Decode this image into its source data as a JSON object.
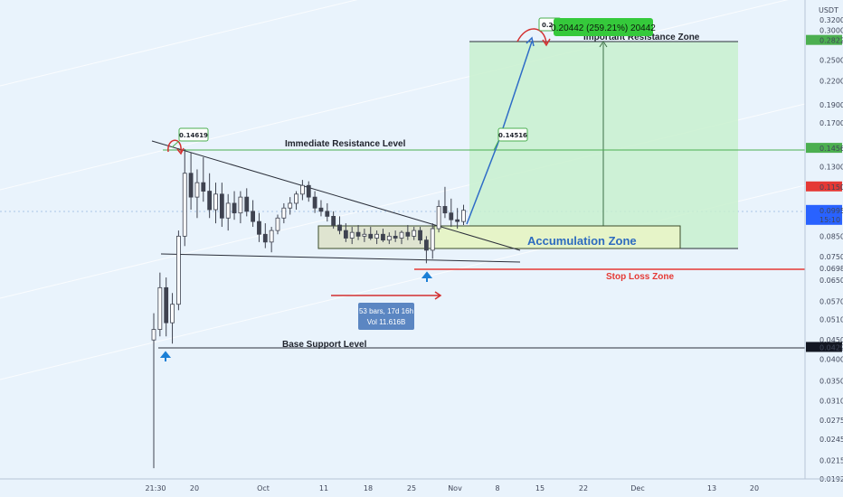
{
  "colors": {
    "background": "#e9f3fc",
    "up_candle": "#3f4350",
    "down_candle": "#3f4350",
    "resistance_line": "#4caf50",
    "stop_loss_line": "#e53935",
    "zone_fill": "#c8f0cf",
    "accumulation_fill": "#e6f4c8",
    "projection_line": "#2e6cc7",
    "arrow_blue": "#1b7fd6",
    "arrow_red": "#d32f2f",
    "measure_box": "#5b86c2",
    "price_tag_black": "#131722",
    "price_tag_green": "#4caf50",
    "price_tag_red": "#e53935",
    "price_tag_blue": "#2962ff"
  },
  "axis": {
    "currency": "USDT",
    "price_ticks": [
      "0.32000",
      "0.30000",
      "0.28223",
      "0.25000",
      "0.22000",
      "0.19000",
      "0.17000",
      "0.14567",
      "0.13000",
      "0.11500",
      "0.09956",
      "0.08500",
      "0.07500",
      "0.06980",
      "0.06500",
      "0.05700",
      "0.05100",
      "0.04500",
      "0.04299",
      "0.04000",
      "0.03500",
      "0.03100",
      "0.02750",
      "0.02450",
      "0.02150",
      "0.01920"
    ],
    "time_ticks": [
      "21:30",
      "20",
      "Oct",
      "11",
      "18",
      "25",
      "Nov",
      "8",
      "15",
      "22",
      "Dec",
      "13",
      "20"
    ],
    "last_price": "0.09956",
    "countdown": "15:10"
  },
  "annotations": {
    "immediate_resistance": "Immediate Resistance Level",
    "important_resistance": "Important Resistance Zone",
    "accumulation": "Accumulation Zone",
    "stop_loss": "Stop Loss Zone",
    "base_support": "Base Support Level",
    "callout_high": "0.14619",
    "callout_mid": "0.14516",
    "callout_target": "0.2850",
    "target_tooltip": "0.20442 (259.21%) 20442",
    "measure_line1": "53 bars, 17d 16h",
    "measure_line2": "Vol 11.616B"
  },
  "chart_data": {
    "type": "candlestick",
    "symbol_quote": "USDT",
    "y_axis": "log",
    "ylim": [
      0.0192,
      0.32
    ],
    "levels": {
      "important_resistance": 0.28223,
      "immediate_resistance": 0.14567,
      "stop_loss": 0.0698,
      "base_support": 0.04299,
      "last_price": 0.09956
    },
    "candles": [
      {
        "o": 0.045,
        "h": 0.053,
        "l": 0.0205,
        "c": 0.048
      },
      {
        "o": 0.048,
        "h": 0.068,
        "l": 0.046,
        "c": 0.062
      },
      {
        "o": 0.062,
        "h": 0.066,
        "l": 0.046,
        "c": 0.05
      },
      {
        "o": 0.05,
        "h": 0.06,
        "l": 0.044,
        "c": 0.056
      },
      {
        "o": 0.056,
        "h": 0.088,
        "l": 0.054,
        "c": 0.085
      },
      {
        "o": 0.085,
        "h": 0.145,
        "l": 0.08,
        "c": 0.125
      },
      {
        "o": 0.125,
        "h": 0.142,
        "l": 0.1,
        "c": 0.108
      },
      {
        "o": 0.108,
        "h": 0.128,
        "l": 0.095,
        "c": 0.118
      },
      {
        "o": 0.118,
        "h": 0.138,
        "l": 0.105,
        "c": 0.112
      },
      {
        "o": 0.112,
        "h": 0.125,
        "l": 0.095,
        "c": 0.1
      },
      {
        "o": 0.1,
        "h": 0.118,
        "l": 0.092,
        "c": 0.11
      },
      {
        "o": 0.11,
        "h": 0.118,
        "l": 0.09,
        "c": 0.095
      },
      {
        "o": 0.095,
        "h": 0.11,
        "l": 0.088,
        "c": 0.104
      },
      {
        "o": 0.104,
        "h": 0.112,
        "l": 0.094,
        "c": 0.098
      },
      {
        "o": 0.098,
        "h": 0.112,
        "l": 0.092,
        "c": 0.108
      },
      {
        "o": 0.108,
        "h": 0.114,
        "l": 0.096,
        "c": 0.099
      },
      {
        "o": 0.099,
        "h": 0.106,
        "l": 0.09,
        "c": 0.093
      },
      {
        "o": 0.093,
        "h": 0.098,
        "l": 0.082,
        "c": 0.086
      },
      {
        "o": 0.086,
        "h": 0.092,
        "l": 0.079,
        "c": 0.082
      },
      {
        "o": 0.082,
        "h": 0.09,
        "l": 0.077,
        "c": 0.088
      },
      {
        "o": 0.088,
        "h": 0.097,
        "l": 0.086,
        "c": 0.095
      },
      {
        "o": 0.095,
        "h": 0.104,
        "l": 0.092,
        "c": 0.101
      },
      {
        "o": 0.101,
        "h": 0.108,
        "l": 0.097,
        "c": 0.104
      },
      {
        "o": 0.104,
        "h": 0.112,
        "l": 0.1,
        "c": 0.11
      },
      {
        "o": 0.11,
        "h": 0.12,
        "l": 0.106,
        "c": 0.116
      },
      {
        "o": 0.116,
        "h": 0.119,
        "l": 0.105,
        "c": 0.108
      },
      {
        "o": 0.108,
        "h": 0.112,
        "l": 0.098,
        "c": 0.101
      },
      {
        "o": 0.101,
        "h": 0.106,
        "l": 0.096,
        "c": 0.099
      },
      {
        "o": 0.099,
        "h": 0.104,
        "l": 0.093,
        "c": 0.096
      },
      {
        "o": 0.096,
        "h": 0.099,
        "l": 0.089,
        "c": 0.091
      },
      {
        "o": 0.091,
        "h": 0.096,
        "l": 0.086,
        "c": 0.088
      },
      {
        "o": 0.088,
        "h": 0.092,
        "l": 0.082,
        "c": 0.084
      },
      {
        "o": 0.084,
        "h": 0.09,
        "l": 0.081,
        "c": 0.087
      },
      {
        "o": 0.087,
        "h": 0.091,
        "l": 0.083,
        "c": 0.085
      },
      {
        "o": 0.085,
        "h": 0.089,
        "l": 0.082,
        "c": 0.086
      },
      {
        "o": 0.086,
        "h": 0.09,
        "l": 0.083,
        "c": 0.084
      },
      {
        "o": 0.084,
        "h": 0.088,
        "l": 0.081,
        "c": 0.086
      },
      {
        "o": 0.086,
        "h": 0.089,
        "l": 0.082,
        "c": 0.083
      },
      {
        "o": 0.083,
        "h": 0.087,
        "l": 0.081,
        "c": 0.085
      },
      {
        "o": 0.085,
        "h": 0.088,
        "l": 0.082,
        "c": 0.084
      },
      {
        "o": 0.084,
        "h": 0.088,
        "l": 0.081,
        "c": 0.087
      },
      {
        "o": 0.087,
        "h": 0.091,
        "l": 0.083,
        "c": 0.085
      },
      {
        "o": 0.085,
        "h": 0.09,
        "l": 0.083,
        "c": 0.088
      },
      {
        "o": 0.088,
        "h": 0.09,
        "l": 0.081,
        "c": 0.083
      },
      {
        "o": 0.083,
        "h": 0.085,
        "l": 0.072,
        "c": 0.078
      },
      {
        "o": 0.078,
        "h": 0.092,
        "l": 0.074,
        "c": 0.089
      },
      {
        "o": 0.089,
        "h": 0.106,
        "l": 0.087,
        "c": 0.102
      },
      {
        "o": 0.102,
        "h": 0.115,
        "l": 0.095,
        "c": 0.098
      },
      {
        "o": 0.098,
        "h": 0.107,
        "l": 0.09,
        "c": 0.094
      },
      {
        "o": 0.094,
        "h": 0.101,
        "l": 0.089,
        "c": 0.093
      },
      {
        "o": 0.093,
        "h": 0.103,
        "l": 0.091,
        "c": 0.0996
      }
    ]
  }
}
